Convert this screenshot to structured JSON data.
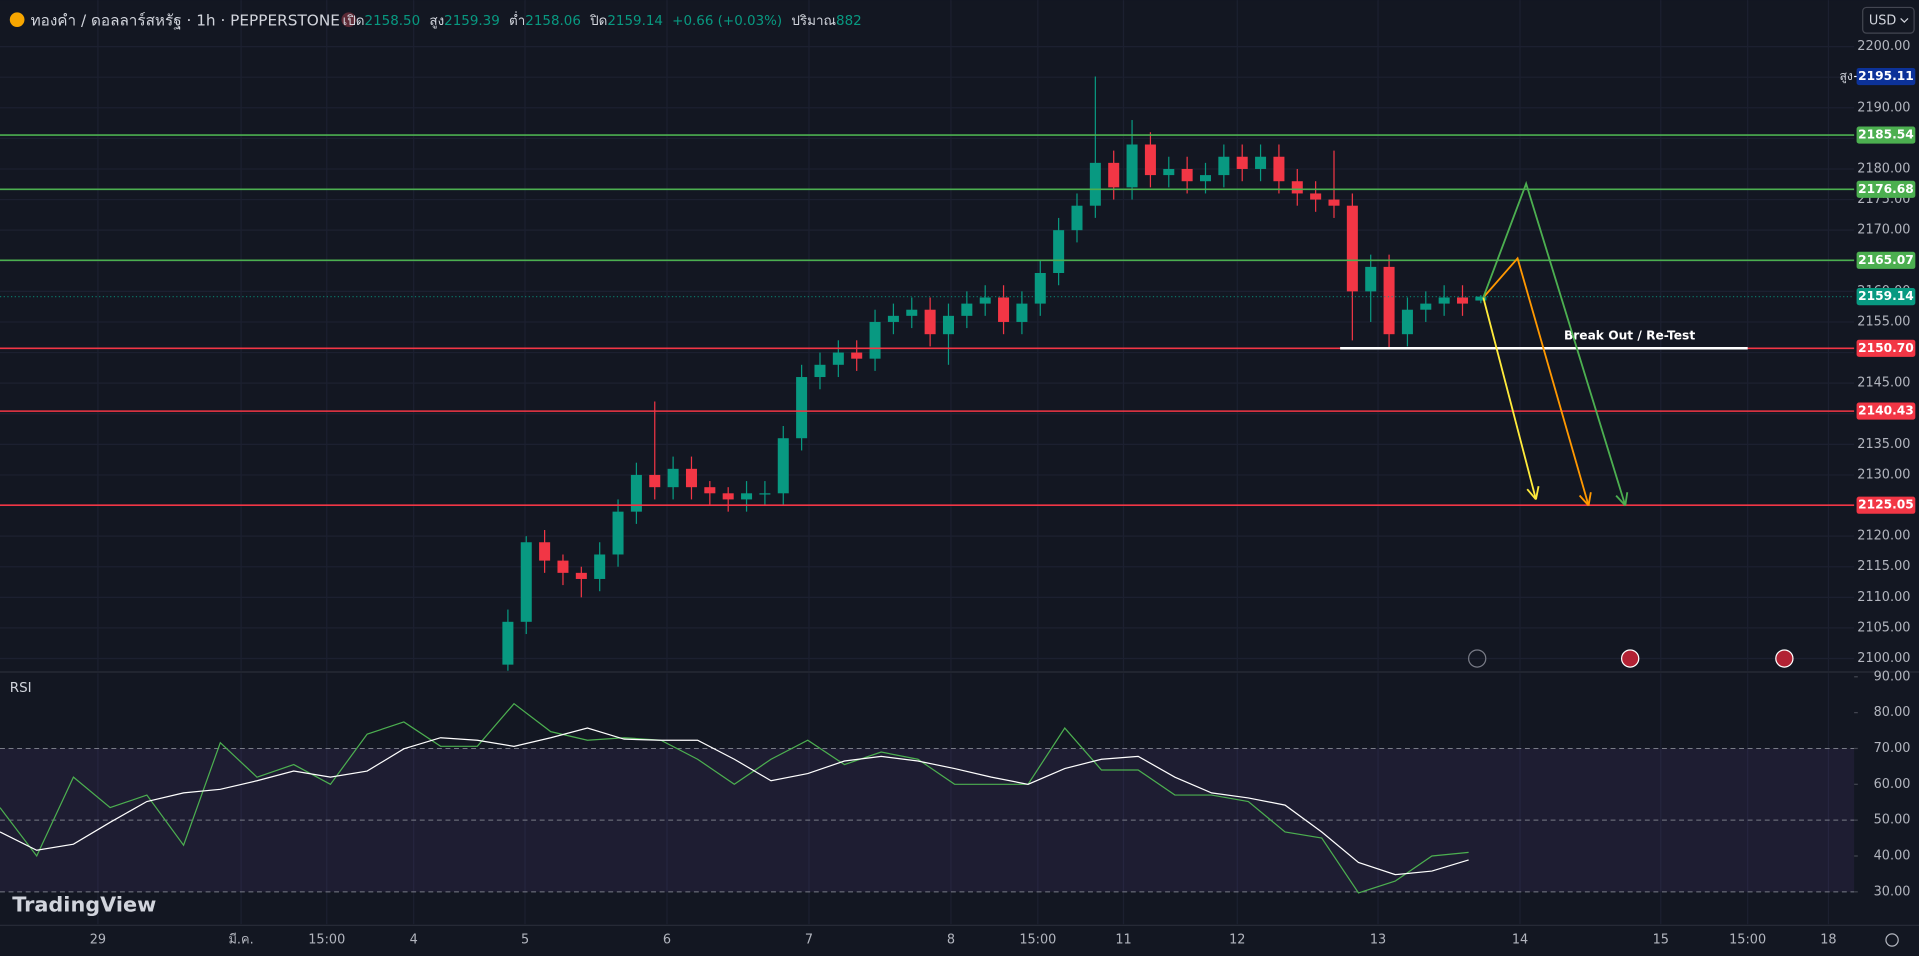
{
  "branding": "TradingView",
  "chart_data": [
    {
      "type": "candlestick",
      "title": "ทองคำ / ดอลลาร์สหรัฐ · 1h · PEPPERSTONE",
      "ohlc_legend": [
        {
          "label": "เปิด",
          "value": "2158.50"
        },
        {
          "label": "สูง",
          "value": "2159.39"
        },
        {
          "label": "ต่ำ",
          "value": "2158.06"
        },
        {
          "label": "ปิด",
          "value": "2159.14"
        }
      ],
      "change": "+0.66 (+0.03%)",
      "volume": {
        "label": "ปริมาณ",
        "value": "882"
      },
      "currency": "USD",
      "up_color": "#089981",
      "down_color": "#f23645",
      "x": [
        83,
        86,
        89,
        92,
        95,
        98,
        101,
        104,
        107,
        110,
        113,
        116,
        119,
        122,
        125,
        128,
        131,
        134,
        137,
        140,
        143,
        146,
        149,
        152,
        155,
        158,
        161,
        164,
        167,
        170,
        173,
        176,
        179,
        182,
        185,
        188,
        191,
        194,
        197,
        200,
        203,
        206,
        209,
        212,
        215,
        218,
        221,
        224,
        227,
        230,
        233,
        236,
        239,
        242
      ],
      "open": [
        2099,
        2106,
        2119,
        2116,
        2114,
        2113,
        2117,
        2124,
        2130,
        2128,
        2131,
        2128,
        2127,
        2126,
        2127,
        2127,
        2136,
        2146,
        2148,
        2150,
        2149,
        2155,
        2156,
        2157,
        2153,
        2156,
        2158,
        2159,
        2155,
        2158,
        2163,
        2170,
        2174,
        2181,
        2177,
        2184,
        2179,
        2180,
        2178,
        2179,
        2182,
        2180,
        2182,
        2178,
        2176,
        2175,
        2174,
        2160,
        2164,
        2153,
        2157,
        2158,
        2159,
        2158.5
      ],
      "high": [
        2108,
        2120,
        2121,
        2117,
        2115,
        2119,
        2126,
        2132,
        2142,
        2133,
        2133,
        2129,
        2128,
        2129,
        2129,
        2138,
        2148,
        2150,
        2152,
        2152,
        2157,
        2158,
        2159,
        2159,
        2158,
        2160,
        2161,
        2161,
        2160,
        2165,
        2172,
        2176,
        2195.11,
        2183,
        2188,
        2186,
        2182,
        2182,
        2181,
        2184,
        2184,
        2184,
        2184,
        2180,
        2178,
        2183,
        2176,
        2166,
        2166,
        2159,
        2160,
        2161,
        2161,
        2159.39
      ],
      "low": [
        2098,
        2104,
        2114,
        2112,
        2110,
        2111,
        2115,
        2122,
        2126,
        2126,
        2126,
        2125,
        2124,
        2124,
        2125,
        2125,
        2134,
        2144,
        2146,
        2147,
        2147,
        2153,
        2154,
        2151,
        2148,
        2154,
        2156,
        2153,
        2153,
        2156,
        2161,
        2168,
        2172,
        2175,
        2175,
        2177,
        2177,
        2176,
        2176,
        2177,
        2178,
        2178,
        2176,
        2174,
        2173,
        2172,
        2152,
        2155,
        2150.5,
        2151,
        2155,
        2156,
        2156,
        2158.06
      ],
      "close": [
        2106,
        2119,
        2116,
        2114,
        2113,
        2117,
        2124,
        2130,
        2128,
        2131,
        2128,
        2127,
        2126,
        2127,
        2127,
        2136,
        2146,
        2148,
        2150,
        2149,
        2155,
        2156,
        2157,
        2153,
        2156,
        2158,
        2159,
        2155,
        2158,
        2163,
        2170,
        2174,
        2181,
        2177,
        2184,
        2179,
        2180,
        2178,
        2179,
        2182,
        2180,
        2182,
        2178,
        2176,
        2175,
        2174,
        2160,
        2164,
        2153,
        2157,
        2158,
        2159,
        2158,
        2159.14
      ],
      "xlim": [
        0,
        303
      ],
      "xticks": [
        {
          "value": 16,
          "label": "29"
        },
        {
          "value": 39.4,
          "label": "มี.ค."
        },
        {
          "value": 53.4,
          "label": "15:00"
        },
        {
          "value": 67.6,
          "label": "4"
        },
        {
          "value": 85.8,
          "label": "5"
        },
        {
          "value": 109,
          "label": "6"
        },
        {
          "value": 132.2,
          "label": "7"
        },
        {
          "value": 155.4,
          "label": "8"
        },
        {
          "value": 169.6,
          "label": "15:00"
        },
        {
          "value": 183.6,
          "label": "11"
        },
        {
          "value": 202.2,
          "label": "12"
        },
        {
          "value": 225.2,
          "label": "13"
        },
        {
          "value": 248.4,
          "label": "14"
        },
        {
          "value": 271.4,
          "label": "15"
        },
        {
          "value": 285.6,
          "label": "15:00"
        },
        {
          "value": 298.8,
          "label": "18"
        }
      ],
      "ylim": [
        2098,
        2207.6
      ],
      "yticks": [
        {
          "value": 2100,
          "label": "2100.00"
        },
        {
          "value": 2105,
          "label": "2105.00"
        },
        {
          "value": 2110,
          "label": "2110.00"
        },
        {
          "value": 2115,
          "label": "2115.00"
        },
        {
          "value": 2120,
          "label": "2120.00"
        },
        {
          "value": 2125,
          "label": "2125.00"
        },
        {
          "value": 2130,
          "label": "2130.00"
        },
        {
          "value": 2135,
          "label": "2135.00"
        },
        {
          "value": 2140,
          "label": "2140.00"
        },
        {
          "value": 2145,
          "label": "2145.00"
        },
        {
          "value": 2150,
          "label": "2150.00"
        },
        {
          "value": 2155,
          "label": "2155.00"
        },
        {
          "value": 2160,
          "label": "2160.00"
        },
        {
          "value": 2165,
          "label": "2165.00"
        },
        {
          "value": 2170,
          "label": "2170.00"
        },
        {
          "value": 2175,
          "label": "2175.00"
        },
        {
          "value": 2180,
          "label": "2180.00"
        },
        {
          "value": 2185,
          "label": "2185.00"
        },
        {
          "value": 2190,
          "label": "2190.00"
        },
        {
          "value": 2195,
          "label": "2195.00"
        },
        {
          "value": 2200,
          "label": "2200.00"
        }
      ],
      "grid": true,
      "levels": [
        {
          "value": 2185.54,
          "label": "2185.54",
          "color": "#4caf50"
        },
        {
          "value": 2176.68,
          "label": "2176.68",
          "color": "#4caf50"
        },
        {
          "value": 2165.07,
          "label": "2165.07",
          "color": "#4caf50"
        },
        {
          "value": 2150.7,
          "label": "2150.70",
          "color": "#f23645"
        },
        {
          "value": 2140.43,
          "label": "2140.43",
          "color": "#f23645"
        },
        {
          "value": 2125.05,
          "label": "2125.05",
          "color": "#f23645"
        }
      ],
      "last_price": {
        "value": 2159.14,
        "label": "2159.14",
        "color": "#089981"
      },
      "high_marker": {
        "name": "สูง",
        "value": 2195.11,
        "label": "2195.11",
        "color": "#0c3299"
      },
      "annotation": {
        "text": "Break Out / Re-Test",
        "x": [
          219,
          285.6
        ],
        "value": 2150.7
      },
      "drawings": [
        {
          "color": "#ffeb3b",
          "x": [
            242.4,
            251
          ],
          "values": [
            2159,
            2126
          ]
        },
        {
          "color": "#ff9800",
          "x": [
            242.4,
            248,
            259.6
          ],
          "values": [
            2159,
            2165.4,
            2125
          ]
        },
        {
          "color": "#4caf50",
          "x": [
            242.4,
            249.4,
            265.6
          ],
          "values": [
            2159,
            2177.6,
            2125
          ]
        }
      ]
    },
    {
      "type": "line",
      "title": "RSI",
      "x": [
        0,
        6,
        12,
        18,
        24,
        30,
        36,
        42,
        48,
        54,
        60,
        66,
        72,
        78,
        84,
        90,
        96,
        102,
        108,
        114,
        120,
        126,
        132,
        138,
        144,
        150,
        156,
        162,
        168,
        174,
        180,
        186,
        192,
        198,
        204,
        210,
        216,
        222,
        228,
        234,
        240
      ],
      "series": [
        {
          "color": "#4caf50",
          "values": [
            53.5,
            40,
            62,
            53.5,
            57,
            43,
            71.6,
            62,
            65.5,
            60,
            74,
            77.4,
            70.6,
            70.6,
            82.5,
            74.7,
            72.3,
            73,
            72.3,
            67,
            60,
            67,
            72.3,
            65.5,
            69,
            67,
            60,
            60,
            60,
            75.7,
            64,
            64,
            57,
            57,
            55.2,
            46.7,
            45,
            29.7,
            33,
            40,
            41
          ]
        },
        {
          "color": "#ffffff",
          "values": [
            46.7,
            41.6,
            43.3,
            49.4,
            55.2,
            57.6,
            58.6,
            61,
            63.7,
            62,
            63.7,
            69.9,
            73,
            72.3,
            70.6,
            73,
            75.7,
            72.6,
            72.3,
            72.3,
            67,
            61,
            63,
            66.5,
            67.8,
            66.5,
            64.4,
            62,
            60,
            64.4,
            67,
            67.8,
            62,
            57.6,
            56.2,
            54.2,
            46.7,
            38.2,
            34.8,
            35.8,
            38.9
          ]
        }
      ],
      "ylim": [
        21,
        91
      ],
      "yticks": [
        {
          "value": 30,
          "label": "30.00"
        },
        {
          "value": 40,
          "label": "40.00"
        },
        {
          "value": 50,
          "label": "50.00"
        },
        {
          "value": 60,
          "label": "60.00"
        },
        {
          "value": 70,
          "label": "70.00"
        },
        {
          "value": 80,
          "label": "80.00"
        },
        {
          "value": 90,
          "label": "90.00"
        }
      ],
      "levels": [
        30,
        50,
        70
      ]
    }
  ]
}
